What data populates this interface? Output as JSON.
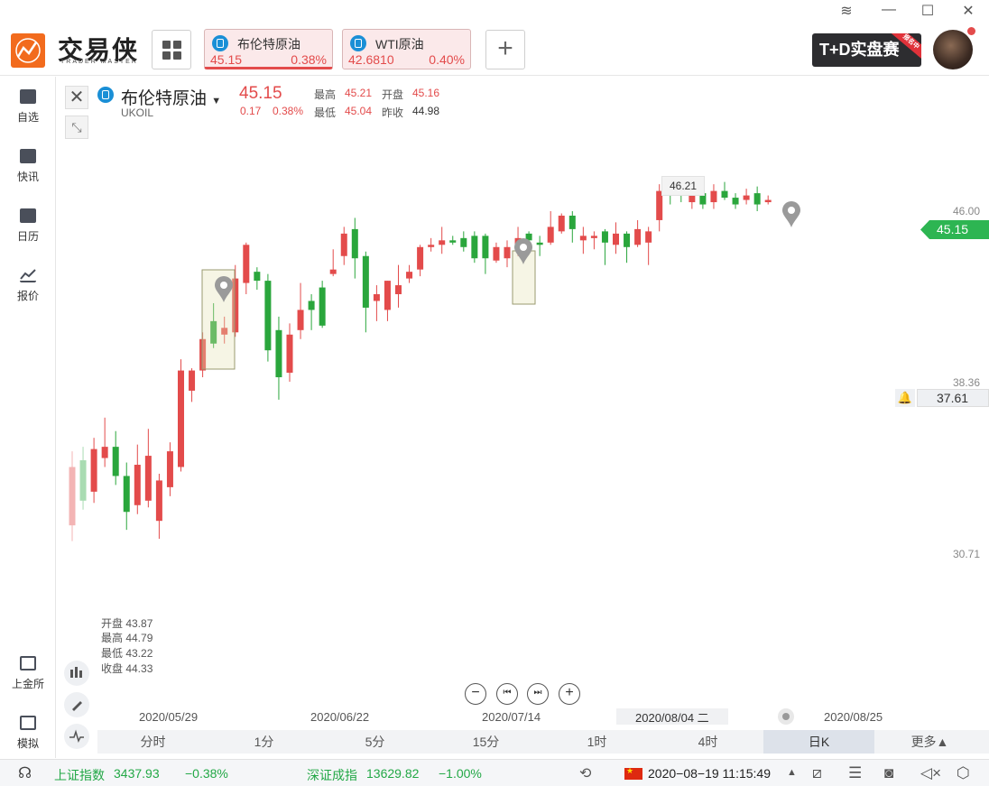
{
  "app": {
    "logo_text": "交易侠",
    "logo_sub": "TRADER MASTER"
  },
  "tabs": [
    {
      "name": "布伦特原油",
      "price": "45.15",
      "pct": "0.38%"
    },
    {
      "name": "WTI原油",
      "price": "42.6810",
      "pct": "0.40%"
    }
  ],
  "promo": {
    "label": "T+D实盘赛",
    "ribbon": "报名中"
  },
  "sidebar": [
    {
      "label": "自选"
    },
    {
      "label": "快讯"
    },
    {
      "label": "日历"
    },
    {
      "label": "报价"
    },
    {
      "label": "上金所"
    },
    {
      "label": "模拟"
    }
  ],
  "quote": {
    "name": "布伦特原油",
    "code": "UKOIL",
    "price": "45.15",
    "change": "0.17",
    "change_pct": "0.38%",
    "high_label": "最高",
    "high": "45.21",
    "low_label": "最低",
    "low": "45.04",
    "open_label": "开盘",
    "open": "45.16",
    "prev_label": "昨收",
    "prev": "44.98"
  },
  "cursor_ohlc": {
    "open": "开盘 43.87",
    "high": "最高 44.79",
    "low": "最低 43.22",
    "close": "收盘 44.33"
  },
  "chart_data": {
    "type": "candlestick",
    "price_labels": [
      "46.00",
      "38.36",
      "30.71"
    ],
    "current_price": "45.15",
    "alert_price": "37.61",
    "max_marker": "46.21",
    "x_labels": [
      "2020/05/29",
      "2020/06/22",
      "2020/07/14",
      "2020/08/04 二",
      "2020/08/25"
    ],
    "candles": [
      {
        "o": 32.0,
        "c": 34.6,
        "h": 35.3,
        "l": 31.3,
        "faded": true
      },
      {
        "o": 34.9,
        "c": 33.1,
        "h": 35.5,
        "l": 32.7,
        "faded": true
      },
      {
        "o": 33.5,
        "c": 35.4,
        "h": 35.9,
        "l": 33.0
      },
      {
        "o": 35.0,
        "c": 35.5,
        "h": 36.8,
        "l": 34.6
      },
      {
        "o": 35.5,
        "c": 34.2,
        "h": 36.2,
        "l": 33.8
      },
      {
        "o": 34.2,
        "c": 32.6,
        "h": 34.8,
        "l": 31.8
      },
      {
        "o": 32.9,
        "c": 34.7,
        "h": 35.6,
        "l": 32.5
      },
      {
        "o": 33.1,
        "c": 35.1,
        "h": 36.3,
        "l": 32.8
      },
      {
        "o": 32.2,
        "c": 34.0,
        "h": 34.3,
        "l": 31.4
      },
      {
        "o": 33.7,
        "c": 35.3,
        "h": 35.7,
        "l": 33.3
      },
      {
        "o": 34.6,
        "c": 38.9,
        "h": 39.4,
        "l": 34.4
      },
      {
        "o": 38.0,
        "c": 38.9,
        "h": 39.0,
        "l": 37.5
      },
      {
        "o": 38.9,
        "c": 40.3,
        "h": 40.6,
        "l": 38.6
      },
      {
        "o": 41.1,
        "c": 40.1,
        "h": 41.9,
        "l": 39.9
      },
      {
        "o": 40.5,
        "c": 40.8,
        "h": 41.3,
        "l": 40.1
      },
      {
        "o": 40.6,
        "c": 43.0,
        "h": 43.6,
        "l": 40.4
      },
      {
        "o": 42.8,
        "c": 44.5,
        "h": 44.6,
        "l": 42.3
      },
      {
        "o": 43.3,
        "c": 42.9,
        "h": 43.5,
        "l": 42.5
      },
      {
        "o": 42.9,
        "c": 39.8,
        "h": 43.2,
        "l": 39.3
      },
      {
        "o": 40.7,
        "c": 38.6,
        "h": 41.3,
        "l": 37.6
      },
      {
        "o": 38.8,
        "c": 40.5,
        "h": 41.0,
        "l": 38.4
      },
      {
        "o": 40.7,
        "c": 41.6,
        "h": 42.8,
        "l": 40.3
      },
      {
        "o": 42.0,
        "c": 41.6,
        "h": 42.3,
        "l": 40.7
      },
      {
        "o": 42.6,
        "c": 40.9,
        "h": 42.9,
        "l": 40.8
      },
      {
        "o": 43.2,
        "c": 43.4,
        "h": 44.3,
        "l": 43.1
      },
      {
        "o": 44.0,
        "c": 45.0,
        "h": 45.3,
        "l": 43.6
      },
      {
        "o": 45.2,
        "c": 43.9,
        "h": 45.7,
        "l": 43.0
      },
      {
        "o": 44.0,
        "c": 41.7,
        "h": 44.2,
        "l": 40.6
      },
      {
        "o": 42.0,
        "c": 42.3,
        "h": 42.7,
        "l": 41.1
      },
      {
        "o": 41.6,
        "c": 42.9,
        "h": 42.9,
        "l": 41.1
      },
      {
        "o": 42.3,
        "c": 42.7,
        "h": 43.6,
        "l": 41.7
      },
      {
        "o": 43.0,
        "c": 43.3,
        "h": 43.6,
        "l": 42.8
      },
      {
        "o": 43.4,
        "c": 44.4,
        "h": 44.5,
        "l": 43.1
      },
      {
        "o": 44.4,
        "c": 44.5,
        "h": 44.8,
        "l": 44.2
      },
      {
        "o": 44.5,
        "c": 44.7,
        "h": 45.3,
        "l": 44.1
      },
      {
        "o": 44.7,
        "c": 44.6,
        "h": 44.9,
        "l": 44.5
      },
      {
        "o": 44.8,
        "c": 44.4,
        "h": 45.1,
        "l": 44.2
      },
      {
        "o": 44.9,
        "c": 43.9,
        "h": 45.1,
        "l": 43.7
      },
      {
        "o": 44.9,
        "c": 43.9,
        "h": 45.0,
        "l": 43.2
      },
      {
        "o": 43.8,
        "c": 44.4,
        "h": 44.6,
        "l": 43.7
      },
      {
        "o": 43.9,
        "c": 44.4,
        "h": 44.7,
        "l": 43.5
      },
      {
        "o": 44.4,
        "c": 44.8,
        "h": 45.3,
        "l": 44.0
      },
      {
        "o": 45.0,
        "c": 44.7,
        "h": 45.1,
        "l": 44.4
      },
      {
        "o": 44.6,
        "c": 44.5,
        "h": 44.9,
        "l": 44.0
      },
      {
        "o": 44.6,
        "c": 45.3,
        "h": 46.0,
        "l": 44.5
      },
      {
        "o": 45.1,
        "c": 45.8,
        "h": 45.9,
        "l": 45.0
      },
      {
        "o": 45.8,
        "c": 45.2,
        "h": 46.0,
        "l": 44.6
      },
      {
        "o": 44.7,
        "c": 44.9,
        "h": 45.3,
        "l": 44.1
      },
      {
        "o": 44.8,
        "c": 44.9,
        "h": 45.1,
        "l": 44.3
      },
      {
        "o": 45.1,
        "c": 44.6,
        "h": 45.2,
        "l": 43.6
      },
      {
        "o": 44.5,
        "c": 45.0,
        "h": 45.5,
        "l": 44.1
      },
      {
        "o": 45.0,
        "c": 44.4,
        "h": 45.1,
        "l": 43.7
      },
      {
        "o": 44.5,
        "c": 45.2,
        "h": 45.6,
        "l": 44.4
      },
      {
        "o": 44.6,
        "c": 45.1,
        "h": 45.3,
        "l": 43.6
      },
      {
        "o": 45.6,
        "c": 46.9,
        "h": 47.2,
        "l": 45.1
      },
      {
        "o": 46.9,
        "c": 46.8,
        "h": 47.4,
        "l": 46.3
      },
      {
        "o": 46.9,
        "c": 46.7,
        "h": 47.3,
        "l": 46.4
      },
      {
        "o": 46.4,
        "c": 46.7,
        "h": 46.9,
        "l": 46.1
      },
      {
        "o": 46.8,
        "c": 46.3,
        "h": 47.5,
        "l": 46.1
      },
      {
        "o": 46.4,
        "c": 46.9,
        "h": 47.2,
        "l": 46.1
      },
      {
        "o": 46.9,
        "c": 46.6,
        "h": 47.3,
        "l": 46.5
      },
      {
        "o": 46.6,
        "c": 46.3,
        "h": 46.8,
        "l": 46.1
      },
      {
        "o": 46.5,
        "c": 46.7,
        "h": 47.0,
        "l": 46.3
      },
      {
        "o": 46.8,
        "c": 46.3,
        "h": 47.1,
        "l": 46.0
      },
      {
        "o": 46.4,
        "c": 46.5,
        "h": 46.7,
        "l": 46.3
      }
    ]
  },
  "controls": {
    "minus": "−",
    "prev": "⏮",
    "next": "⏭",
    "plus": "+"
  },
  "timeframes": [
    "分时",
    "1分",
    "5分",
    "15分",
    "1时",
    "4时",
    "日K",
    "更多▲"
  ],
  "statusbar": {
    "idx1_name": "上证指数",
    "idx1_val": "3437.93",
    "idx1_pct": "−0.38%",
    "idx2_name": "深证成指",
    "idx2_val": "13629.82",
    "idx2_pct": "−1.00%",
    "datetime": "2020−08−19 11:15:49"
  }
}
